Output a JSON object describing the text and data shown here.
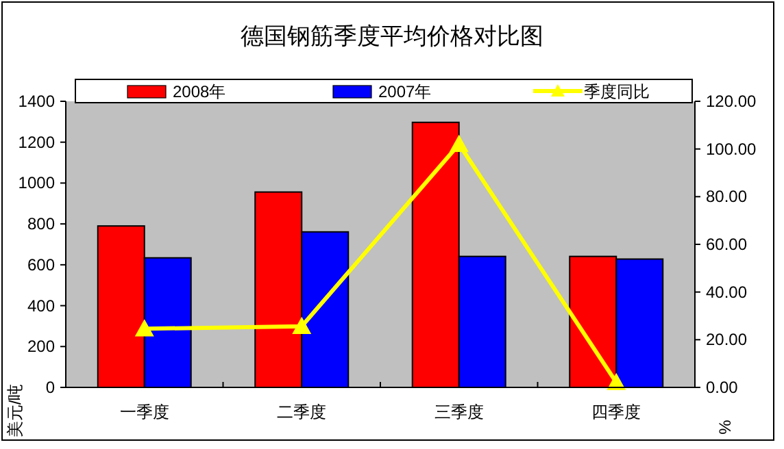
{
  "chart_data": {
    "type": "bar",
    "title": "德国钢筋季度平均价格对比图",
    "ylabel": "美元/吨",
    "y2label": "%",
    "categories": [
      "一季度",
      "二季度",
      "三季度",
      "四季度"
    ],
    "series": [
      {
        "name": "2008年",
        "color": "#ff0000",
        "values": [
          790,
          956,
          1297,
          641
        ]
      },
      {
        "name": "2007年",
        "color": "#0000ff",
        "values": [
          634,
          761,
          641,
          628
        ]
      },
      {
        "name": "季度同比",
        "color": "#ffff00",
        "type": "line",
        "axis": "y2",
        "marker": "triangle",
        "values": [
          24.6,
          25.6,
          102,
          2.1
        ]
      }
    ],
    "ylim": [
      0,
      1400
    ],
    "yticks": [
      0,
      200,
      400,
      600,
      800,
      1000,
      1200,
      1400
    ],
    "y2lim": [
      0,
      120
    ],
    "y2ticks": [
      {
        "value": 0,
        "label": "0.00"
      },
      {
        "value": 20,
        "label": "20.00"
      },
      {
        "value": 40,
        "label": "40.00"
      },
      {
        "value": 60,
        "label": "60.00"
      },
      {
        "value": 80,
        "label": "80.00"
      },
      {
        "value": 100,
        "label": "100.00"
      },
      {
        "value": 120,
        "label": "120.00"
      }
    ],
    "legend": "top",
    "grid": false
  }
}
